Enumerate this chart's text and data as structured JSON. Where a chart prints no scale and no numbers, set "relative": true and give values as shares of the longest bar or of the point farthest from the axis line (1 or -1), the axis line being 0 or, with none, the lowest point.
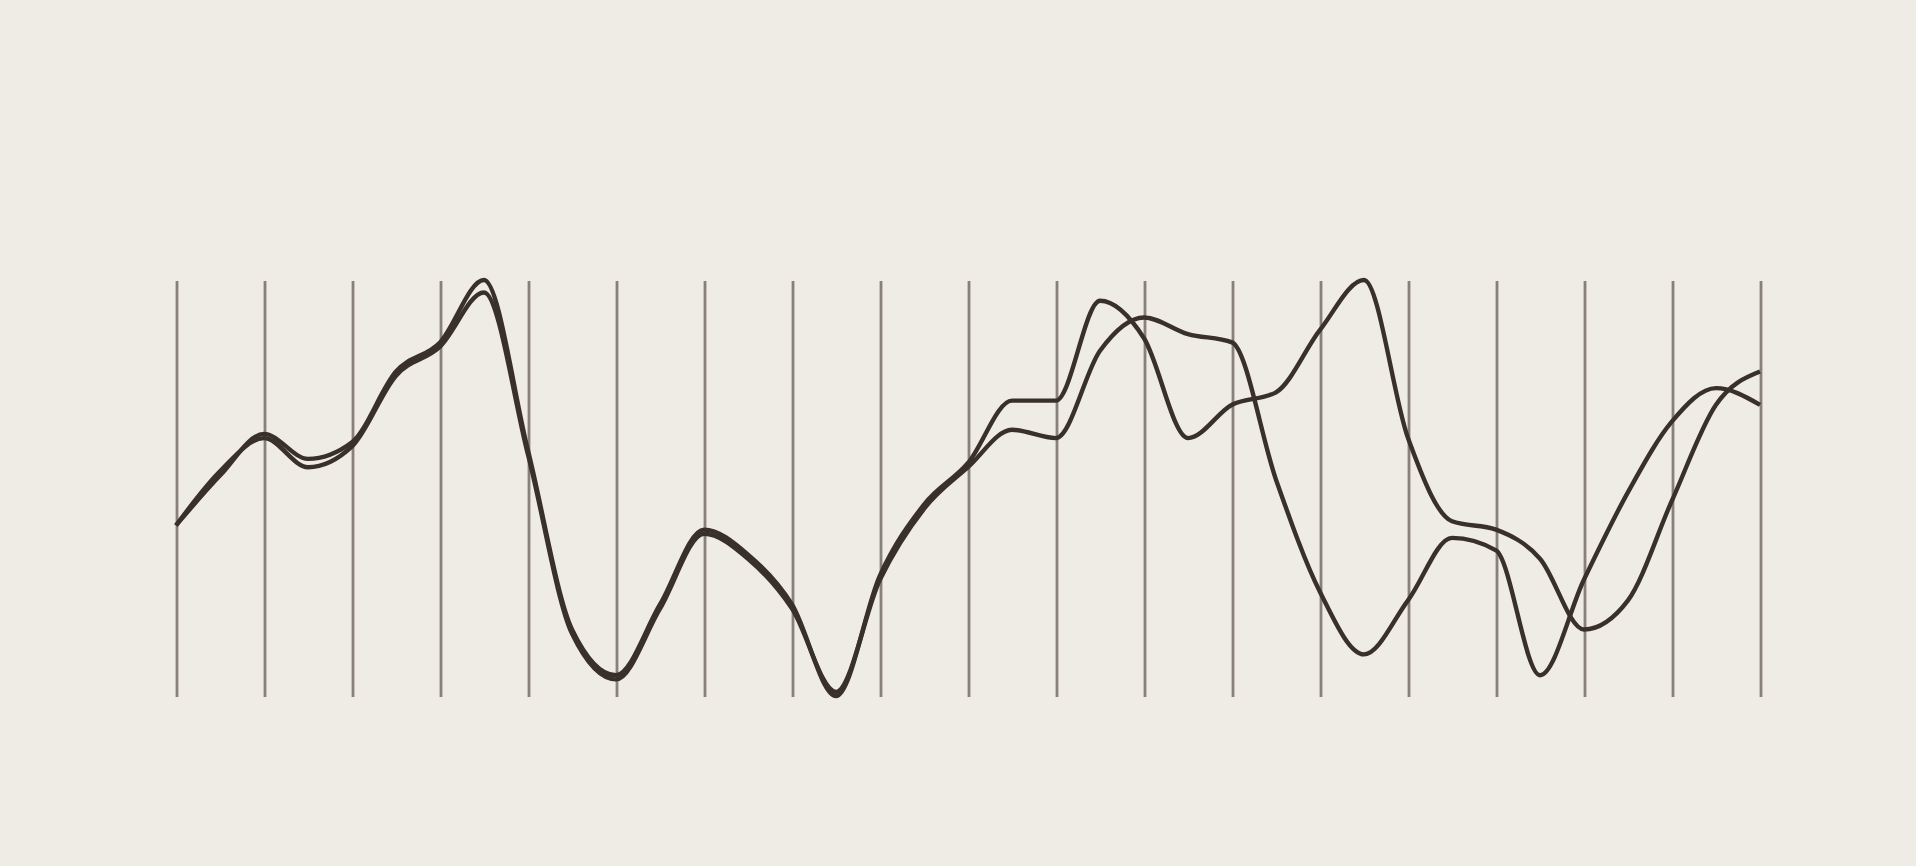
{
  "chart_data": {
    "type": "line",
    "relative": true,
    "grid": "x",
    "marker": "none",
    "categories": [
      null,
      null,
      null,
      null,
      null,
      null,
      null,
      null,
      null,
      null,
      null,
      null,
      null,
      null,
      null,
      null,
      null,
      null,
      null,
      null,
      null,
      null,
      null,
      null,
      null,
      null,
      null,
      null,
      null,
      null,
      null,
      null,
      null,
      null,
      null,
      null,
      null
    ],
    "series": [
      {
        "color": "#3a302b",
        "values": [
          0.41,
          0.53,
          0.63,
          0.57,
          0.61,
          0.78,
          0.85,
          1.0,
          0.59,
          0.16,
          0.05,
          0.22,
          0.4,
          0.34,
          0.22,
          0,
          0.29,
          0.46,
          0.56,
          0.71,
          0.71,
          0.95,
          0.86,
          0.62,
          0.7,
          0.73,
          0.88,
          1.0,
          0.62,
          0.42,
          0.4,
          0.33,
          0.16,
          0.23,
          0.47,
          0.7,
          0.78
        ]
      },
      {
        "color": "#3a302b",
        "values": [
          0.41,
          0.54,
          0.62,
          0.55,
          0.6,
          0.77,
          0.84,
          0.97,
          0.58,
          0.15,
          0.04,
          0.21,
          0.39,
          0.33,
          0.21,
          0.01,
          0.28,
          0.45,
          0.55,
          0.64,
          0.62,
          0.83,
          0.91,
          0.87,
          0.85,
          0.52,
          0.25,
          0.1,
          0.23,
          0.38,
          0.35,
          0.05,
          0.28,
          0.49,
          0.66,
          0.74,
          0.7
        ]
      }
    ]
  }
}
